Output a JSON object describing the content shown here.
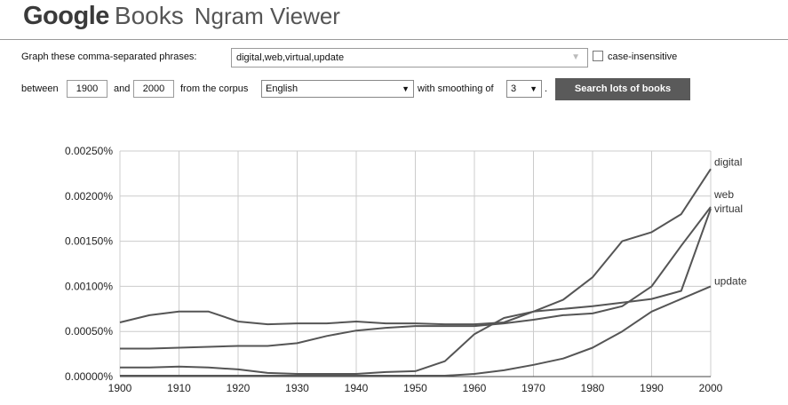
{
  "logo": {
    "google": "Google",
    "books": "Books",
    "ngram": "Ngram Viewer"
  },
  "form": {
    "phrases_label": "Graph these comma-separated phrases:",
    "phrases_value": "digital,web,virtual,update",
    "case_insensitive_label": "case-insensitive",
    "between_label": "between",
    "start_year": "1900",
    "and_label": "and",
    "end_year": "2000",
    "corpus_label": "from the corpus",
    "corpus_value": "English",
    "smoothing_label": "with smoothing of",
    "smoothing_value": "3",
    "period": ".",
    "search_button": "Search lots of books"
  },
  "icons": {
    "select_arrow": "triangle-down-icon",
    "phrase_dropdown": "chevron-down-icon"
  },
  "colors": {
    "line": "#555555",
    "grid": "#cccccc",
    "button": "#5a5a5a"
  },
  "chart_data": {
    "type": "line",
    "x": [
      1900,
      1905,
      1910,
      1915,
      1920,
      1925,
      1930,
      1935,
      1940,
      1945,
      1950,
      1955,
      1960,
      1965,
      1970,
      1975,
      1980,
      1985,
      1990,
      1995,
      2000
    ],
    "xlim": [
      1900,
      2000
    ],
    "ylim": [
      0,
      0.0025
    ],
    "x_ticks": [
      "1900",
      "1910",
      "1920",
      "1930",
      "1940",
      "1950",
      "1960",
      "1970",
      "1980",
      "1990",
      "2000"
    ],
    "y_ticks": [
      "0.00000%",
      "0.00050%",
      "0.00100%",
      "0.00150%",
      "0.00200%",
      "0.00250%"
    ],
    "grid": true,
    "series": [
      {
        "name": "digital",
        "values": [
          0.0006,
          0.00068,
          0.00072,
          0.00072,
          0.00061,
          0.00058,
          0.00059,
          0.00059,
          0.00061,
          0.00059,
          0.00059,
          0.00058,
          0.00058,
          0.0006,
          0.00072,
          0.00085,
          0.0011,
          0.0015,
          0.0016,
          0.0018,
          0.0023
        ]
      },
      {
        "name": "web",
        "values": [
          0.00031,
          0.00031,
          0.00032,
          0.00033,
          0.00034,
          0.00034,
          0.00037,
          0.00045,
          0.00051,
          0.00054,
          0.00056,
          0.00056,
          0.00056,
          0.00059,
          0.00063,
          0.00068,
          0.0007,
          0.00078,
          0.001,
          0.00145,
          0.00188
        ]
      },
      {
        "name": "virtual",
        "values": [
          0.0001,
          0.0001,
          0.00011,
          0.0001,
          8e-05,
          4e-05,
          3e-05,
          3e-05,
          3e-05,
          5e-05,
          6e-05,
          0.00017,
          0.00047,
          0.00065,
          0.00072,
          0.00075,
          0.00078,
          0.00082,
          0.00086,
          0.00095,
          0.00186
        ]
      },
      {
        "name": "update",
        "values": [
          1e-05,
          1e-05,
          1e-05,
          1e-05,
          1e-05,
          1e-05,
          1e-05,
          1e-05,
          1e-05,
          1e-05,
          1e-05,
          1e-05,
          3e-05,
          7e-05,
          0.00013,
          0.0002,
          0.00032,
          0.0005,
          0.00072,
          0.00086,
          0.001
        ]
      }
    ]
  }
}
